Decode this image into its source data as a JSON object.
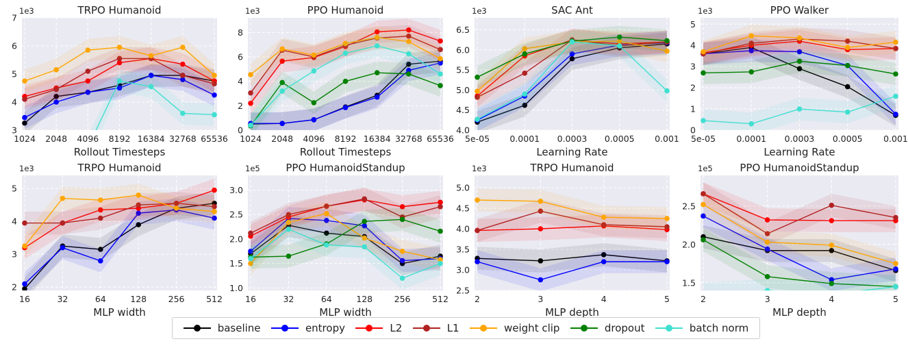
{
  "colors": {
    "baseline": "#000000",
    "entropy": "#0000ff",
    "L2": "#ff0000",
    "L1": "#b22222",
    "weight clip": "#ffa500",
    "dropout": "#008000",
    "batch norm": "#40e0d0"
  },
  "legend": [
    "baseline",
    "entropy",
    "L2",
    "L1",
    "weight clip",
    "dropout",
    "batch norm"
  ],
  "chart_data": [
    {
      "type": "line",
      "title": "TRPO Humanoid",
      "xlabel": "Rollout Timesteps",
      "ylabel": "",
      "exponent": "1e3",
      "categories": [
        "1024",
        "2048",
        "4096",
        "8192",
        "16384",
        "32768",
        "65536"
      ],
      "ylim": [
        3,
        7
      ],
      "yticks": [
        "3",
        "4",
        "5",
        "6",
        "7"
      ],
      "grid": true,
      "series": [
        {
          "name": "baseline",
          "values": [
            3.25,
            4.2,
            4.35,
            4.6,
            4.95,
            4.95,
            4.75
          ]
        },
        {
          "name": "entropy",
          "values": [
            3.45,
            4.0,
            4.35,
            4.5,
            4.95,
            4.8,
            4.25
          ]
        },
        {
          "name": "L2",
          "values": [
            4.2,
            4.5,
            4.75,
            5.4,
            5.55,
            5.35,
            4.75
          ]
        },
        {
          "name": "L1",
          "values": [
            4.1,
            4.45,
            5.1,
            5.55,
            5.55,
            4.95,
            4.65
          ]
        },
        {
          "name": "weight clip",
          "values": [
            4.75,
            5.15,
            5.85,
            5.95,
            5.65,
            5.95,
            4.95
          ]
        },
        {
          "name": "dropout",
          "values": [
            null,
            null,
            null,
            null,
            null,
            null,
            null
          ]
        },
        {
          "name": "batch norm",
          "values": [
            null,
            null,
            2.4,
            4.75,
            4.55,
            3.6,
            3.55
          ]
        }
      ]
    },
    {
      "type": "line",
      "title": "PPO Humanoid",
      "xlabel": "Rollout Timesteps",
      "ylabel": "",
      "exponent": "1e3",
      "categories": [
        "1024",
        "2048",
        "4096",
        "8192",
        "16384",
        "32768",
        "65536"
      ],
      "ylim": [
        0,
        9.2
      ],
      "yticks": [
        "0",
        "2",
        "4",
        "6",
        "8"
      ],
      "grid": true,
      "series": [
        {
          "name": "baseline",
          "values": [
            0.5,
            0.55,
            0.85,
            1.9,
            2.85,
            5.4,
            5.65
          ]
        },
        {
          "name": "entropy",
          "values": [
            0.55,
            0.55,
            0.85,
            1.85,
            2.7,
            4.9,
            5.5
          ]
        },
        {
          "name": "L2",
          "values": [
            2.2,
            5.65,
            5.95,
            6.85,
            8.05,
            8.2,
            7.3
          ]
        },
        {
          "name": "L1",
          "values": [
            3.05,
            6.55,
            6.0,
            6.95,
            7.55,
            7.7,
            6.6
          ]
        },
        {
          "name": "weight clip",
          "values": [
            4.55,
            6.65,
            6.15,
            7.1,
            7.6,
            7.25,
            5.85
          ]
        },
        {
          "name": "dropout",
          "values": [
            0.35,
            3.9,
            2.25,
            4.0,
            4.7,
            4.6,
            3.65
          ]
        },
        {
          "name": "batch norm",
          "values": [
            0.4,
            3.2,
            4.85,
            6.3,
            6.9,
            6.25,
            4.6
          ]
        }
      ]
    },
    {
      "type": "line",
      "title": "SAC Ant",
      "xlabel": "Learning Rate",
      "ylabel": "",
      "exponent": "1e3",
      "categories": [
        "5e-05",
        "0.0001",
        "0.0003",
        "0.0005",
        "0.001"
      ],
      "ylim": [
        4.0,
        6.8
      ],
      "yticks": [
        "4.0",
        "4.5",
        "5.0",
        "5.5",
        "6.0",
        "6.5"
      ],
      "grid": true,
      "series": [
        {
          "name": "baseline",
          "values": [
            4.2,
            4.62,
            5.78,
            6.05,
            6.15
          ]
        },
        {
          "name": "entropy",
          "values": [
            4.25,
            4.85,
            5.9,
            6.12,
            6.18
          ]
        },
        {
          "name": "L2",
          "values": [
            4.85,
            5.85,
            6.25,
            6.15,
            6.2
          ]
        },
        {
          "name": "L1",
          "values": [
            4.82,
            5.42,
            6.25,
            6.1,
            6.2
          ]
        },
        {
          "name": "weight clip",
          "values": [
            4.97,
            6.03,
            6.2,
            6.22,
            5.97
          ]
        },
        {
          "name": "dropout",
          "values": [
            5.32,
            5.9,
            6.22,
            6.32,
            6.23
          ]
        },
        {
          "name": "batch norm",
          "values": [
            4.27,
            4.9,
            6.2,
            6.1,
            4.98
          ]
        }
      ]
    },
    {
      "type": "line",
      "title": "PPO Walker",
      "xlabel": "Learning Rate",
      "ylabel": "",
      "exponent": "1e3",
      "categories": [
        "5e-05",
        "0.0001",
        "0.0003",
        "0.0005",
        "0.001"
      ],
      "ylim": [
        0,
        5.3
      ],
      "yticks": [
        "0",
        "1",
        "2",
        "3",
        "4",
        "5"
      ],
      "grid": true,
      "series": [
        {
          "name": "baseline",
          "values": [
            3.6,
            3.9,
            2.9,
            2.05,
            0.7
          ]
        },
        {
          "name": "entropy",
          "values": [
            3.6,
            3.75,
            3.7,
            3.05,
            0.75
          ]
        },
        {
          "name": "L2",
          "values": [
            3.65,
            4.0,
            4.2,
            3.8,
            3.85
          ]
        },
        {
          "name": "L1",
          "values": [
            3.6,
            4.1,
            4.3,
            4.2,
            3.85
          ]
        },
        {
          "name": "weight clip",
          "values": [
            3.7,
            4.45,
            4.35,
            3.9,
            4.15
          ]
        },
        {
          "name": "dropout",
          "values": [
            2.7,
            2.75,
            3.25,
            3.05,
            2.65
          ]
        },
        {
          "name": "batch norm",
          "values": [
            0.45,
            0.3,
            1.0,
            0.85,
            1.6
          ]
        }
      ]
    },
    {
      "type": "line",
      "title": "TRPO Humanoid",
      "xlabel": "MLP width",
      "ylabel": "",
      "exponent": "1e3",
      "categories": [
        "16",
        "32",
        "64",
        "128",
        "256",
        "512"
      ],
      "ylim": [
        1.9,
        5.4
      ],
      "yticks": [
        "2",
        "3",
        "4",
        "5"
      ],
      "grid": true,
      "series": [
        {
          "name": "baseline",
          "values": [
            1.95,
            3.25,
            3.15,
            3.9,
            4.4,
            4.55
          ]
        },
        {
          "name": "entropy",
          "values": [
            2.1,
            3.2,
            2.8,
            4.25,
            4.35,
            4.1
          ]
        },
        {
          "name": "L2",
          "values": [
            3.2,
            3.95,
            4.35,
            4.4,
            4.55,
            4.95
          ]
        },
        {
          "name": "L1",
          "values": [
            3.95,
            3.95,
            4.1,
            4.5,
            4.55,
            4.45
          ]
        },
        {
          "name": "weight clip",
          "values": [
            3.25,
            4.7,
            4.65,
            4.8,
            4.4,
            4.3
          ]
        },
        {
          "name": "dropout",
          "values": [
            null,
            null,
            null,
            null,
            null,
            null
          ]
        },
        {
          "name": "batch norm",
          "values": [
            null,
            null,
            null,
            null,
            null,
            null
          ]
        }
      ]
    },
    {
      "type": "line",
      "title": "PPO HumanoidStandup",
      "xlabel": "MLP width",
      "ylabel": "",
      "exponent": "1e5",
      "categories": [
        "16",
        "32",
        "64",
        "128",
        "256",
        "512"
      ],
      "ylim": [
        0.95,
        3.3
      ],
      "yticks": [
        "1.0",
        "1.5",
        "2.0",
        "2.5",
        "3.0"
      ],
      "grid": true,
      "series": [
        {
          "name": "baseline",
          "values": [
            1.7,
            2.28,
            2.12,
            2.05,
            1.5,
            1.65
          ]
        },
        {
          "name": "entropy",
          "values": [
            1.75,
            2.42,
            2.38,
            2.27,
            1.56,
            1.6
          ]
        },
        {
          "name": "L2",
          "values": [
            2.06,
            2.45,
            2.67,
            2.8,
            2.66,
            2.75
          ]
        },
        {
          "name": "L1",
          "values": [
            2.12,
            2.5,
            2.67,
            2.82,
            2.45,
            2.66
          ]
        },
        {
          "name": "weight clip",
          "values": [
            1.5,
            2.34,
            2.52,
            2.02,
            1.75,
            1.58
          ]
        },
        {
          "name": "dropout",
          "values": [
            1.63,
            1.65,
            1.9,
            2.36,
            2.4,
            2.16
          ]
        },
        {
          "name": "batch norm",
          "values": [
            1.6,
            2.2,
            1.88,
            1.84,
            1.2,
            1.5
          ]
        }
      ]
    },
    {
      "type": "line",
      "title": "TRPO Humanoid",
      "xlabel": "MLP depth",
      "ylabel": "",
      "exponent": "1e3",
      "categories": [
        "2",
        "3",
        "4",
        "5"
      ],
      "ylim": [
        2.5,
        5.3
      ],
      "yticks": [
        "2.5",
        "3.0",
        "3.5",
        "4.0",
        "4.5",
        "5.0"
      ],
      "grid": true,
      "series": [
        {
          "name": "baseline",
          "values": [
            3.28,
            3.22,
            3.37,
            3.22
          ]
        },
        {
          "name": "entropy",
          "values": [
            3.2,
            2.76,
            3.2,
            3.2
          ]
        },
        {
          "name": "L2",
          "values": [
            3.96,
            4.0,
            4.07,
            3.98
          ]
        },
        {
          "name": "L1",
          "values": [
            3.96,
            4.43,
            4.1,
            4.05
          ]
        },
        {
          "name": "weight clip",
          "values": [
            4.7,
            4.67,
            4.28,
            4.25
          ]
        },
        {
          "name": "dropout",
          "values": [
            null,
            null,
            null,
            null
          ]
        },
        {
          "name": "batch norm",
          "values": [
            null,
            null,
            null,
            null
          ]
        }
      ]
    },
    {
      "type": "line",
      "title": "PPO HumanoidStandup",
      "xlabel": "MLP depth",
      "ylabel": "",
      "exponent": "1e5",
      "categories": [
        "2",
        "3",
        "4",
        "5"
      ],
      "ylim": [
        1.4,
        2.9
      ],
      "yticks": [
        "1.5",
        "2.0",
        "2.5"
      ],
      "grid": true,
      "series": [
        {
          "name": "baseline",
          "values": [
            2.1,
            1.92,
            1.92,
            1.66
          ]
        },
        {
          "name": "entropy",
          "values": [
            2.37,
            1.94,
            1.54,
            1.68
          ]
        },
        {
          "name": "L2",
          "values": [
            2.66,
            2.32,
            2.31,
            2.31
          ]
        },
        {
          "name": "L1",
          "values": [
            2.66,
            2.14,
            2.51,
            2.35
          ]
        },
        {
          "name": "weight clip",
          "values": [
            2.52,
            2.03,
            1.99,
            1.75
          ]
        },
        {
          "name": "dropout",
          "values": [
            2.06,
            1.58,
            1.49,
            1.45
          ]
        },
        {
          "name": "batch norm",
          "values": [
            1.35,
            1.4,
            1.35,
            1.45
          ]
        }
      ]
    }
  ]
}
